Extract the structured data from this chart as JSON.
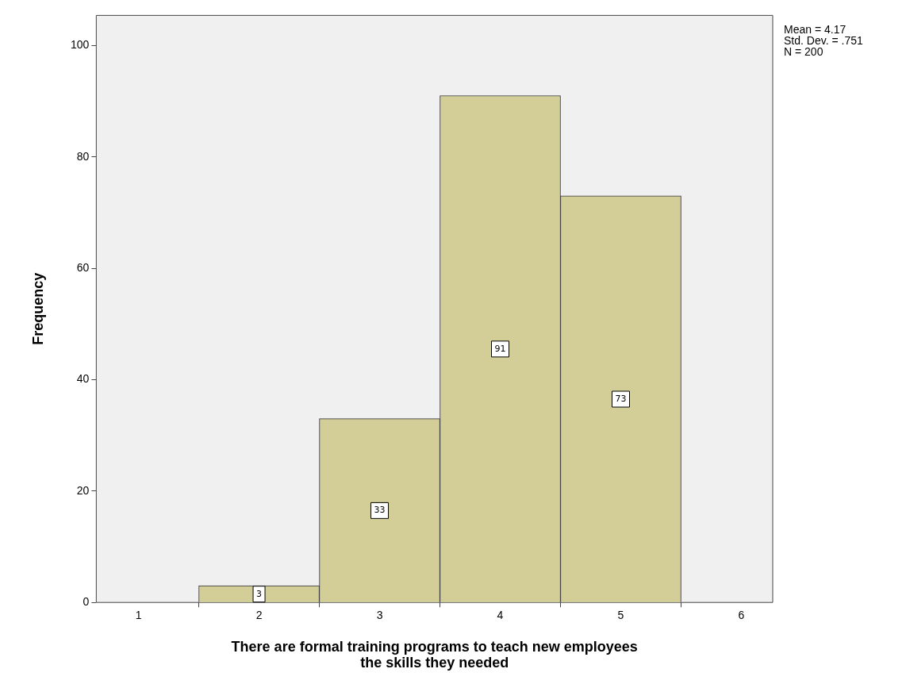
{
  "chart_data": {
    "type": "histogram",
    "xlabel": "There are formal training programs to teach new employees the skills they needed",
    "ylabel": "Frequency",
    "bins": [
      1.5,
      2.5,
      3.5,
      4.5,
      5.5
    ],
    "values": [
      3,
      33,
      91,
      73
    ],
    "color": "#d3ce97",
    "xlim": [
      0.65,
      6.26
    ],
    "xticks": [
      1,
      2,
      3,
      4,
      5,
      6
    ],
    "ylim": [
      0,
      105.4
    ],
    "yticks": [
      0,
      20,
      40,
      60,
      80,
      100
    ],
    "grid": false,
    "legend": false,
    "data_labels": true,
    "annotations": [
      "Mean = 4.17",
      "Std. Dev. = .751",
      "N = 200"
    ]
  }
}
